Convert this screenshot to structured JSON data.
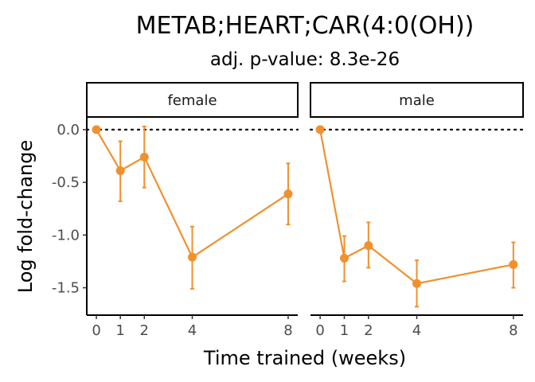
{
  "chart_data": {
    "type": "line",
    "title": "METAB;HEART;CAR(4:0(OH))",
    "subtitle": "adj. p-value: 8.3e-26",
    "xlabel": "Time trained (weeks)",
    "ylabel": "Log fold-change",
    "x_ticks": [
      0,
      1,
      2,
      4,
      8
    ],
    "y_ticks": [
      0.0,
      -0.5,
      -1.0,
      -1.5
    ],
    "y_tick_labels": [
      "0.0",
      "-0.5",
      "-1.0",
      "-1.5"
    ],
    "xlim": [
      -0.4,
      8.4
    ],
    "ylim": [
      -1.76,
      0.12
    ],
    "reference_line": 0,
    "color": "#F0912F",
    "panels": [
      {
        "name": "female",
        "x": [
          0,
          1,
          2,
          4,
          8
        ],
        "y": [
          0.0,
          -0.39,
          -0.26,
          -1.21,
          -0.61
        ],
        "lower": [
          0.0,
          -0.68,
          -0.55,
          -1.51,
          -0.9
        ],
        "upper": [
          0.0,
          -0.11,
          0.03,
          -0.92,
          -0.32
        ]
      },
      {
        "name": "male",
        "x": [
          0,
          1,
          2,
          4,
          8
        ],
        "y": [
          0.0,
          -1.22,
          -1.1,
          -1.46,
          -1.28
        ],
        "lower": [
          0.0,
          -1.44,
          -1.31,
          -1.68,
          -1.5
        ],
        "upper": [
          0.0,
          -1.01,
          -0.88,
          -1.24,
          -1.07
        ]
      }
    ]
  }
}
